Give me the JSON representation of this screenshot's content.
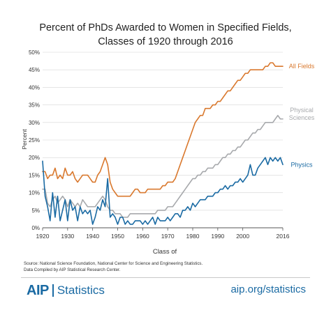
{
  "title_line1": "Percent of PhDs Awarded to Women in Specified Fields,",
  "title_line2": "Classes of 1920 through 2016",
  "source_line1": "Source: National Science Foundation, National Center for Science and Engineering Statistics.",
  "source_line2": "Data Compiled by AIP Statistical Research Center.",
  "footer": {
    "logo_mark": "AIP",
    "logo_text": "Statistics",
    "url": "aip.org/statistics"
  },
  "colors": {
    "all_fields": "#d9782d",
    "physical_sciences": "#a7a9ac",
    "physics": "#1a6aa3"
  },
  "chart_data": {
    "type": "line",
    "xlabel": "Class of",
    "ylabel": "Percent",
    "xlim": [
      1920,
      2016
    ],
    "ylim": [
      0,
      50
    ],
    "x_ticks": [
      "1920",
      "1930",
      "1940",
      "1950",
      "1960",
      "1970",
      "1980",
      "1990",
      "2000",
      "2016"
    ],
    "y_ticks": [
      "0%",
      "5%",
      "10%",
      "15%",
      "20%",
      "25%",
      "30%",
      "35%",
      "40%",
      "45%",
      "50%"
    ],
    "grid": "horizontal",
    "series": [
      {
        "name": "All Fields",
        "label_lines": [
          "All Fields"
        ],
        "color": "#d9782d",
        "x": [
          1920,
          1921,
          1922,
          1923,
          1924,
          1925,
          1926,
          1927,
          1928,
          1929,
          1930,
          1931,
          1932,
          1933,
          1934,
          1935,
          1936,
          1937,
          1938,
          1939,
          1940,
          1941,
          1942,
          1943,
          1944,
          1945,
          1946,
          1947,
          1948,
          1949,
          1950,
          1951,
          1952,
          1953,
          1954,
          1955,
          1956,
          1957,
          1958,
          1959,
          1960,
          1961,
          1962,
          1963,
          1964,
          1965,
          1966,
          1967,
          1968,
          1969,
          1970,
          1971,
          1972,
          1973,
          1974,
          1975,
          1976,
          1977,
          1978,
          1979,
          1980,
          1981,
          1982,
          1983,
          1984,
          1985,
          1986,
          1987,
          1988,
          1989,
          1990,
          1991,
          1992,
          1993,
          1994,
          1995,
          1996,
          1997,
          1998,
          1999,
          2000,
          2001,
          2002,
          2003,
          2004,
          2005,
          2006,
          2007,
          2008,
          2009,
          2010,
          2011,
          2012,
          2013,
          2014,
          2015,
          2016
        ],
        "values": [
          16,
          16,
          14,
          15,
          15,
          17,
          14,
          15,
          14,
          17,
          15,
          15,
          16,
          14,
          13,
          14,
          15,
          15,
          15,
          14,
          13,
          13,
          15,
          16,
          18,
          20,
          18,
          13,
          11,
          10,
          9,
          9,
          9,
          9,
          9,
          9,
          10,
          11,
          11,
          10,
          10,
          10,
          11,
          11,
          11,
          11,
          11,
          11,
          12,
          12,
          13,
          13,
          13,
          14,
          16,
          18,
          20,
          22,
          24,
          26,
          28,
          30,
          31,
          32,
          32,
          34,
          34,
          34,
          35,
          35,
          36,
          36,
          37,
          38,
          39,
          39,
          40,
          41,
          42,
          42,
          43,
          44,
          44,
          45,
          45,
          45,
          45,
          45,
          45,
          46,
          46,
          47,
          47,
          46,
          46,
          46,
          46
        ]
      },
      {
        "name": "Physical Sciences",
        "label_lines": [
          "Physical",
          "Sciences"
        ],
        "color": "#a7a9ac",
        "x": [
          1920,
          1921,
          1922,
          1923,
          1924,
          1925,
          1926,
          1927,
          1928,
          1929,
          1930,
          1931,
          1932,
          1933,
          1934,
          1935,
          1936,
          1937,
          1938,
          1939,
          1940,
          1941,
          1942,
          1943,
          1944,
          1945,
          1946,
          1947,
          1948,
          1949,
          1950,
          1951,
          1952,
          1953,
          1954,
          1955,
          1956,
          1957,
          1958,
          1959,
          1960,
          1961,
          1962,
          1963,
          1964,
          1965,
          1966,
          1967,
          1968,
          1969,
          1970,
          1971,
          1972,
          1973,
          1974,
          1975,
          1976,
          1977,
          1978,
          1979,
          1980,
          1981,
          1982,
          1983,
          1984,
          1985,
          1986,
          1987,
          1988,
          1989,
          1990,
          1991,
          1992,
          1993,
          1994,
          1995,
          1996,
          1997,
          1998,
          1999,
          2000,
          2001,
          2002,
          2003,
          2004,
          2005,
          2006,
          2007,
          2008,
          2009,
          2010,
          2011,
          2012,
          2013,
          2014,
          2015,
          2016
        ],
        "values": [
          11,
          11,
          7,
          6,
          8,
          9,
          7,
          8,
          9,
          8,
          6,
          8,
          7,
          6,
          7,
          6,
          8,
          7,
          6,
          6,
          6,
          6,
          7,
          8,
          9,
          8,
          6,
          5,
          5,
          4,
          4,
          4,
          3,
          3,
          3,
          4,
          4,
          4,
          4,
          4,
          4,
          4,
          4,
          4,
          4,
          4,
          5,
          5,
          5,
          5,
          6,
          6,
          6,
          7,
          8,
          9,
          10,
          11,
          12,
          13,
          14,
          14,
          15,
          15,
          16,
          16,
          17,
          17,
          17,
          18,
          18,
          19,
          20,
          20,
          21,
          21,
          22,
          22,
          23,
          23,
          24,
          25,
          25,
          26,
          27,
          27,
          28,
          28,
          29,
          30,
          30,
          30,
          30,
          31,
          32,
          31,
          31
        ]
      },
      {
        "name": "Physics",
        "label_lines": [
          "Physics"
        ],
        "color": "#1a6aa3",
        "x": [
          1920,
          1921,
          1922,
          1923,
          1924,
          1925,
          1926,
          1927,
          1928,
          1929,
          1930,
          1931,
          1932,
          1933,
          1934,
          1935,
          1936,
          1937,
          1938,
          1939,
          1940,
          1941,
          1942,
          1943,
          1944,
          1945,
          1946,
          1947,
          1948,
          1949,
          1950,
          1951,
          1952,
          1953,
          1954,
          1955,
          1956,
          1957,
          1958,
          1959,
          1960,
          1961,
          1962,
          1963,
          1964,
          1965,
          1966,
          1967,
          1968,
          1969,
          1970,
          1971,
          1972,
          1973,
          1974,
          1975,
          1976,
          1977,
          1978,
          1979,
          1980,
          1981,
          1982,
          1983,
          1984,
          1985,
          1986,
          1987,
          1988,
          1989,
          1990,
          1991,
          1992,
          1993,
          1994,
          1995,
          1996,
          1997,
          1998,
          1999,
          2000,
          2001,
          2002,
          2003,
          2004,
          2005,
          2006,
          2007,
          2008,
          2009,
          2010,
          2011,
          2012,
          2013,
          2014,
          2015,
          2016
        ],
        "values": [
          19,
          9,
          6,
          2,
          10,
          3,
          9,
          2,
          5,
          8,
          2,
          8,
          5,
          6,
          2,
          6,
          4,
          5,
          4,
          5,
          1,
          3,
          6,
          5,
          8,
          6,
          14,
          3,
          4,
          3,
          1,
          3,
          3,
          1,
          2,
          1,
          1,
          2,
          2,
          2,
          1,
          2,
          1,
          2,
          3,
          1,
          3,
          2,
          2,
          2,
          3,
          2,
          3,
          4,
          4,
          3,
          5,
          5,
          6,
          5,
          7,
          6,
          7,
          8,
          8,
          8,
          9,
          9,
          9,
          10,
          10,
          11,
          11,
          12,
          11,
          12,
          12,
          13,
          13,
          14,
          13,
          14,
          15,
          18,
          15,
          15,
          17,
          18,
          19,
          20,
          18,
          20,
          19,
          20,
          19,
          20,
          18
        ]
      }
    ]
  }
}
